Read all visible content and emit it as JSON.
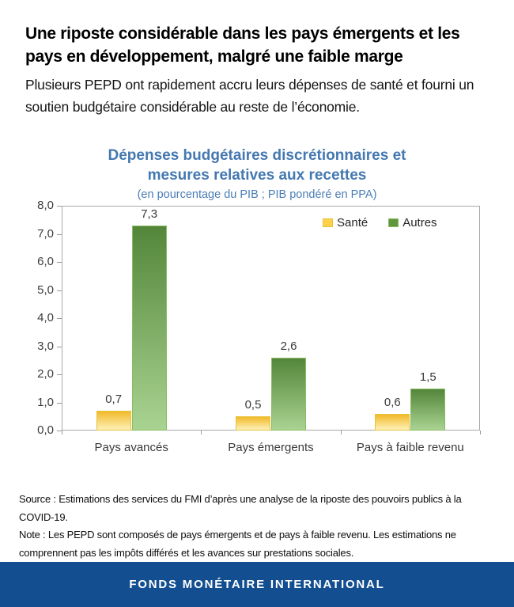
{
  "header": {
    "title": "Une riposte considérable dans les pays émergents et les pays en développement, malgré une faible marge",
    "subtitle": "Plusieurs PEPD ont rapidement accru leurs dépenses de santé et fourni un soutien budgétaire considérable au reste de l’économie."
  },
  "chart_data": {
    "type": "bar",
    "title": "Dépenses budgétaires discrétionnaires et mesures relatives aux recettes",
    "title_lines": [
      "Dépenses budgétaires discrétionnaires et",
      "mesures relatives aux recettes"
    ],
    "subtitle": "(en pourcentage du PIB ; PIB pondéré en PPA)",
    "categories": [
      "Pays avancés",
      "Pays émergents",
      "Pays à faible revenu"
    ],
    "series": [
      {
        "name": "Santé",
        "values": [
          0.7,
          0.5,
          0.6
        ],
        "color_top": "#f2ba29",
        "color_bottom": "#fdf1b8",
        "border": "#e8c23c",
        "legend_color": "#fcd24c"
      },
      {
        "name": "Autres",
        "values": [
          7.3,
          2.6,
          1.5
        ],
        "color_top": "#53863a",
        "color_bottom": "#a9d391",
        "border": "#8abc63",
        "legend_color": "#61953f"
      }
    ],
    "xlabel": "",
    "ylabel": "",
    "ylim": [
      0,
      8
    ],
    "ytick_step": 1,
    "decimal_separator": ",",
    "grid": false,
    "legend_position": "top-right",
    "value_labels": true
  },
  "footnote": {
    "source": "Source : Estimations des services du FMI d’après une analyse de la riposte des pouvoirs publics à la COVID-19.",
    "note": "Note : Les PEPD sont composés de pays émergents et de pays à faible revenu. Les estimations ne comprennent pas les impôts différés et les avances sur prestations sociales."
  },
  "footer": {
    "label": "FONDS MONÉTAIRE INTERNATIONAL"
  },
  "colors": {
    "chart_title_blue": "#4478b0",
    "chart_subtitle_blue": "#4a7db5",
    "footer_blue": "#134f90",
    "axis_text": "#3d3d3d",
    "plot_border": "#a8a8a8"
  }
}
